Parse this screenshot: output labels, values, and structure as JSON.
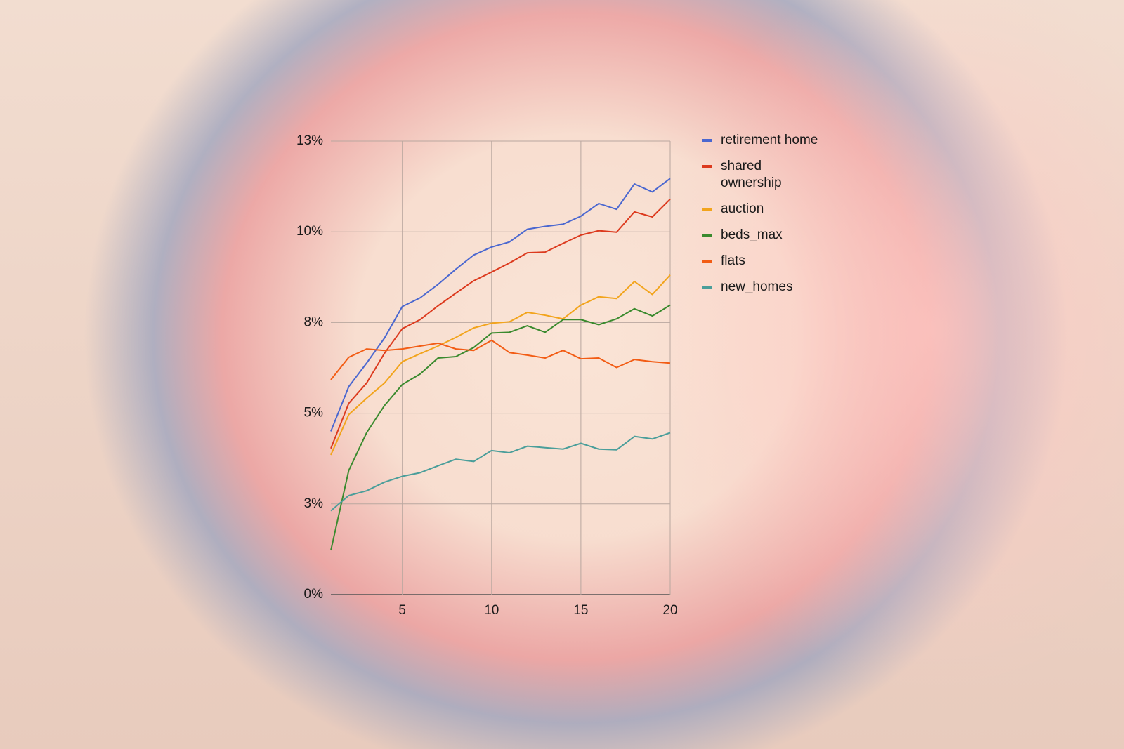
{
  "chart_data": {
    "type": "line",
    "x": [
      1,
      2,
      3,
      4,
      5,
      6,
      7,
      8,
      9,
      10,
      11,
      12,
      13,
      14,
      15,
      16,
      17,
      18,
      19,
      20
    ],
    "xlim": [
      1,
      20
    ],
    "xticks": [
      5,
      10,
      15,
      20
    ],
    "ylim": [
      0,
      12.5
    ],
    "yticks": [
      {
        "value": 0,
        "label": "0%"
      },
      {
        "value": 2.5,
        "label": "3%"
      },
      {
        "value": 5,
        "label": "5%"
      },
      {
        "value": 7.5,
        "label": "8%"
      },
      {
        "value": 10,
        "label": "10%"
      },
      {
        "value": 12.5,
        "label": "13%"
      }
    ],
    "grid": true,
    "legend": "right",
    "series": [
      {
        "name": "retirement home",
        "color": "#4a67d0",
        "values": [
          4.5,
          5.73,
          6.38,
          7.07,
          7.94,
          8.18,
          8.55,
          8.97,
          9.36,
          9.58,
          9.72,
          10.07,
          10.15,
          10.21,
          10.43,
          10.78,
          10.62,
          11.32,
          11.1,
          11.47
        ]
      },
      {
        "name": "shared ownership",
        "color": "#dc3a1e",
        "values": [
          4.03,
          5.27,
          5.83,
          6.65,
          7.33,
          7.58,
          7.96,
          8.31,
          8.65,
          8.89,
          9.14,
          9.42,
          9.44,
          9.68,
          9.91,
          10.03,
          9.99,
          10.55,
          10.41,
          10.9
        ]
      },
      {
        "name": "auction",
        "color": "#f2a41c",
        "values": [
          3.85,
          4.96,
          5.41,
          5.83,
          6.42,
          6.64,
          6.85,
          7.09,
          7.35,
          7.48,
          7.52,
          7.78,
          7.7,
          7.6,
          7.98,
          8.21,
          8.16,
          8.63,
          8.27,
          8.81
        ]
      },
      {
        "name": "beds_max",
        "color": "#3a8a2e",
        "values": [
          1.22,
          3.42,
          4.46,
          5.21,
          5.79,
          6.08,
          6.52,
          6.56,
          6.81,
          7.21,
          7.23,
          7.41,
          7.23,
          7.58,
          7.58,
          7.44,
          7.6,
          7.88,
          7.68,
          7.98
        ]
      },
      {
        "name": "flats",
        "color": "#f25c14",
        "values": [
          5.92,
          6.54,
          6.77,
          6.73,
          6.77,
          6.85,
          6.93,
          6.77,
          6.73,
          7.01,
          6.67,
          6.6,
          6.52,
          6.73,
          6.5,
          6.52,
          6.26,
          6.48,
          6.42,
          6.38
        ]
      },
      {
        "name": "new_homes",
        "color": "#4a9e9a",
        "values": [
          2.31,
          2.73,
          2.86,
          3.1,
          3.26,
          3.36,
          3.55,
          3.73,
          3.67,
          3.97,
          3.91,
          4.09,
          4.05,
          4.01,
          4.17,
          4.01,
          3.99,
          4.36,
          4.29,
          4.46
        ]
      }
    ]
  }
}
